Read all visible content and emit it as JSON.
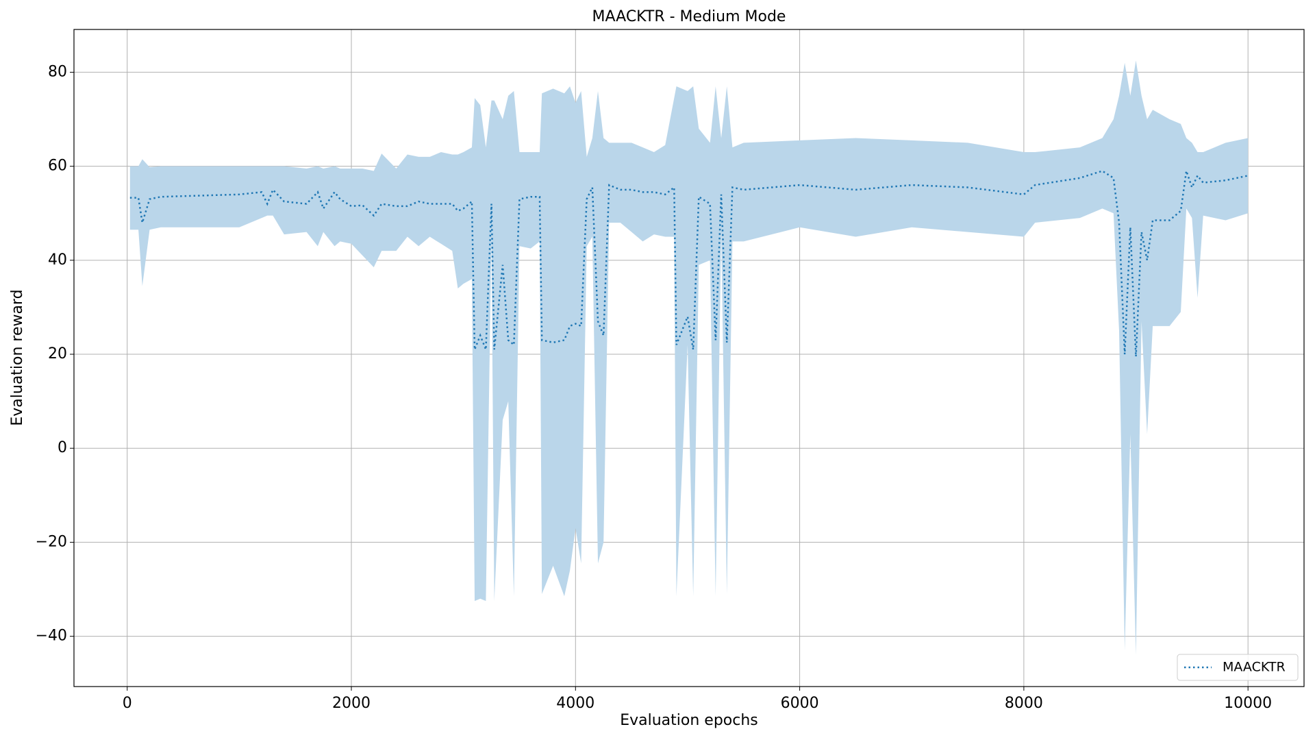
{
  "chart_data": {
    "type": "line",
    "title": "MAACKTR - Medium Mode",
    "x_label": "Evaluation epochs",
    "y_label": "Evaluation reward",
    "xlim": [
      -475,
      10500
    ],
    "ylim": [
      -50.7,
      89.1
    ],
    "xticks": [
      0,
      2000,
      4000,
      6000,
      8000,
      10000
    ],
    "yticks": [
      {
        "value": -40,
        "label": "−40"
      },
      {
        "value": -20,
        "label": "−20"
      },
      0,
      20,
      40,
      60,
      80
    ],
    "grid": true,
    "legend": "lower right",
    "x": [
      25,
      100,
      135,
      200,
      300,
      1000,
      1200,
      1250,
      1300,
      1400,
      1600,
      1700,
      1750,
      1850,
      1900,
      2000,
      2100,
      2200,
      2270,
      2400,
      2500,
      2600,
      2700,
      2800,
      2900,
      2950,
      3000,
      3075,
      3100,
      3150,
      3200,
      3250,
      3275,
      3350,
      3400,
      3450,
      3500,
      3600,
      3680,
      3700,
      3800,
      3900,
      3950,
      4000,
      4050,
      4100,
      4150,
      4200,
      4250,
      4300,
      4400,
      4500,
      4600,
      4700,
      4800,
      4880,
      4900,
      5000,
      5050,
      5100,
      5200,
      5250,
      5300,
      5350,
      5400,
      5500,
      6000,
      6500,
      7000,
      7500,
      8000,
      8100,
      8500,
      8700,
      8800,
      8850,
      8900,
      8950,
      9000,
      9050,
      9100,
      9150,
      9300,
      9400,
      9450,
      9500,
      9550,
      9600,
      9800,
      10000
    ],
    "series": [
      {
        "name": "MAACKTR",
        "color": "#1f77b4",
        "band_color": "#bad6ea",
        "values": [
          53.3,
          53.3,
          48,
          53,
          53.5,
          54,
          54.5,
          52,
          55,
          52.5,
          52,
          54.5,
          51,
          54.5,
          53,
          51.5,
          51.7,
          49.5,
          52,
          51.5,
          51.5,
          52.5,
          52,
          52,
          52,
          50.5,
          51,
          52.5,
          21,
          24,
          21,
          52,
          21,
          39,
          23,
          22,
          53,
          53.5,
          53.5,
          23,
          22.5,
          23,
          26,
          26.5,
          26,
          53,
          55.5,
          27,
          24,
          56,
          55,
          55,
          54.5,
          54.5,
          54,
          55.5,
          22,
          28,
          21,
          53.5,
          52,
          23,
          54,
          22.5,
          55.5,
          55,
          56,
          55,
          56,
          55.5,
          54,
          56,
          57.5,
          59,
          57.5,
          48,
          20,
          47,
          19.5,
          46,
          40,
          48.5,
          48.5,
          50.5,
          59,
          55.5,
          58,
          56.5,
          57,
          58
        ],
        "lower": [
          46.5,
          46.5,
          34.5,
          46.5,
          47,
          47,
          49,
          49.5,
          49.5,
          45.5,
          46,
          43,
          46,
          43,
          44,
          43.5,
          41,
          38.5,
          42,
          42,
          45,
          43,
          45,
          43.5,
          42,
          34,
          35,
          36,
          -32.5,
          -32,
          -32.5,
          45,
          -32.5,
          6,
          10,
          -31.5,
          43,
          42.5,
          44,
          -31,
          -25,
          -31.5,
          -26,
          -17,
          -24.5,
          43,
          45,
          -24.5,
          -20,
          48,
          48,
          46,
          44,
          45.5,
          45,
          45,
          -31.5,
          22,
          -31.5,
          39,
          40,
          -31.5,
          46,
          -31,
          44,
          44,
          47,
          45,
          47,
          46,
          45,
          48,
          49,
          51,
          50,
          25,
          -43,
          3,
          -44,
          27,
          3,
          26,
          26,
          29,
          51,
          49,
          32,
          49.5,
          48.5,
          50
        ],
        "upper": [
          60,
          60,
          61.5,
          59.8,
          60,
          60,
          60,
          60,
          60,
          60,
          59.5,
          60,
          59.5,
          60,
          59.5,
          59.5,
          59.5,
          59,
          62.7,
          59.5,
          62.5,
          62,
          62,
          63,
          62.5,
          62.5,
          63,
          64,
          74.5,
          73,
          64,
          74,
          74,
          70,
          75,
          76,
          63,
          63,
          63,
          75.5,
          76.5,
          75.5,
          77,
          73.5,
          76,
          62,
          66,
          76,
          66,
          65,
          65,
          65,
          64,
          63,
          64.5,
          74.5,
          77,
          76,
          77,
          68,
          65,
          77,
          66,
          77,
          64,
          65,
          65.5,
          66,
          65.5,
          65,
          63,
          63,
          64,
          66,
          70,
          75,
          82,
          75,
          82.5,
          75,
          70,
          72,
          70,
          69,
          66,
          65,
          63,
          63,
          65,
          66
        ]
      }
    ]
  }
}
